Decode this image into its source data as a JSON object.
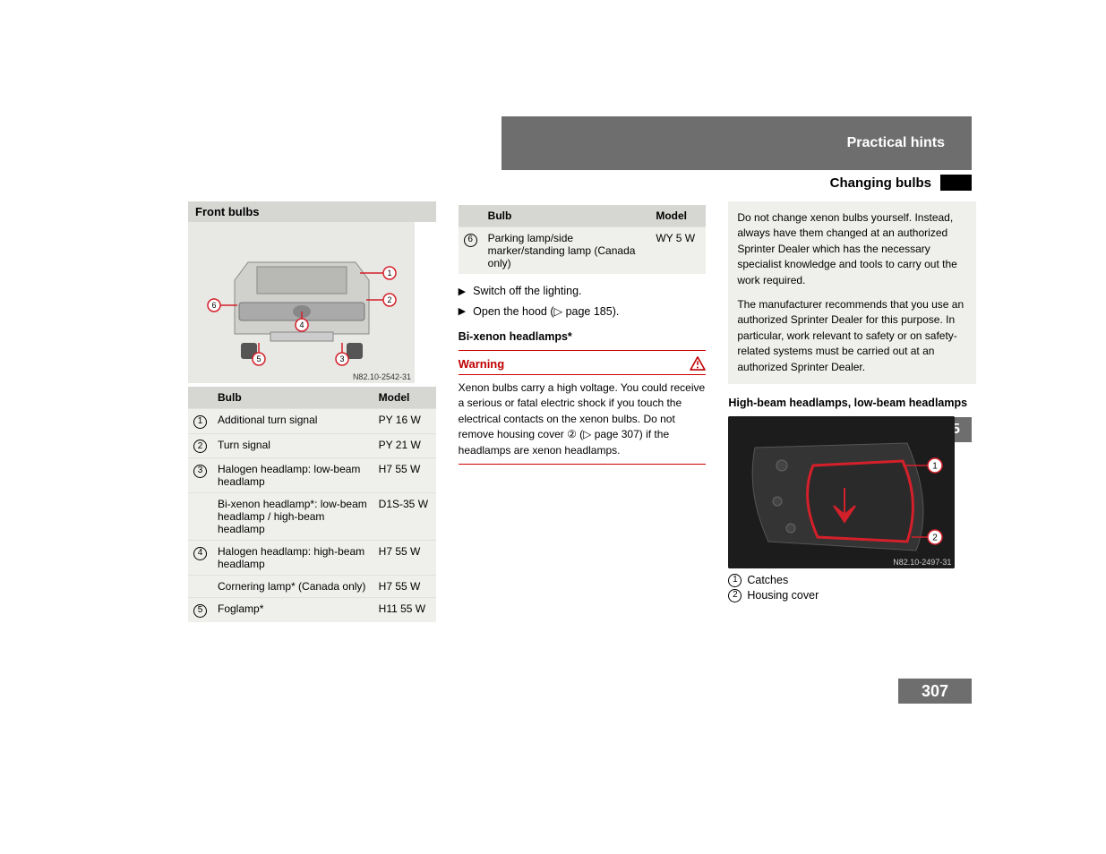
{
  "header": {
    "section": "Practical hints",
    "subsection": "Changing bulbs"
  },
  "chapter_number": "5",
  "page_number": "307",
  "left": {
    "title": "Front bulbs",
    "figure_ref": "N82.10-2542-31",
    "van_callouts": [
      "1",
      "2",
      "3",
      "4",
      "5",
      "6"
    ],
    "table": {
      "headers": {
        "bulb": "Bulb",
        "model": "Model"
      },
      "rows": [
        {
          "num": "1",
          "bulb": "Additional turn signal",
          "model": "PY 16 W"
        },
        {
          "num": "2",
          "bulb": "Turn signal",
          "model": "PY 21 W"
        },
        {
          "num": "3",
          "bulb": "Halogen headlamp: low-beam headlamp",
          "model": "H7 55 W"
        },
        {
          "num": "",
          "bulb": "Bi-xenon headlamp*: low-beam headlamp / high-beam headlamp",
          "model": "D1S-35 W"
        },
        {
          "num": "4",
          "bulb": "Halogen headlamp: high-beam headlamp",
          "model": "H7 55 W"
        },
        {
          "num": "",
          "bulb": "Cornering lamp* (Canada only)",
          "model": "H7 55 W"
        },
        {
          "num": "5",
          "bulb": "Foglamp*",
          "model": "H11 55 W"
        }
      ]
    }
  },
  "middle": {
    "table": {
      "headers": {
        "bulb": "Bulb",
        "model": "Model"
      },
      "rows": [
        {
          "num": "6",
          "bulb": "Parking lamp/side marker/standing lamp (Canada only)",
          "model": "WY 5 W"
        }
      ]
    },
    "steps": [
      "Switch off the lighting.",
      "Open the hood (▷ page 185)."
    ],
    "subhead": "Bi-xenon headlamps*",
    "warning": {
      "label": "Warning",
      "body": "Xenon bulbs carry a high voltage. You could receive a serious or fatal electric shock if you touch the electrical contacts on the xenon bulbs. Do not remove housing cover ② (▷ page 307) if the headlamps are xenon headlamps."
    }
  },
  "right": {
    "info": {
      "p1": "Do not change xenon bulbs yourself. Instead, always have them changed at an authorized Sprinter Dealer which has the necessary specialist knowledge and tools to carry out the work required.",
      "p2": "The manufacturer recommends that you use an authorized Sprinter Dealer for this purpose. In particular, work relevant to safety or on safety-related systems must be carried out at an authorized Sprinter Dealer."
    },
    "subhead": "High-beam headlamps, low-beam headlamps",
    "figure_ref": "N82.10-2497-31",
    "legend": [
      {
        "num": "1",
        "text": "Catches"
      },
      {
        "num": "2",
        "text": "Housing cover"
      }
    ]
  },
  "colors": {
    "header_bg": "#6e6e6e",
    "zebra_bg": "#efefec",
    "head_bg": "#d6d6d3",
    "warning_red": "#c00000",
    "callout_red": "#d4202a"
  }
}
